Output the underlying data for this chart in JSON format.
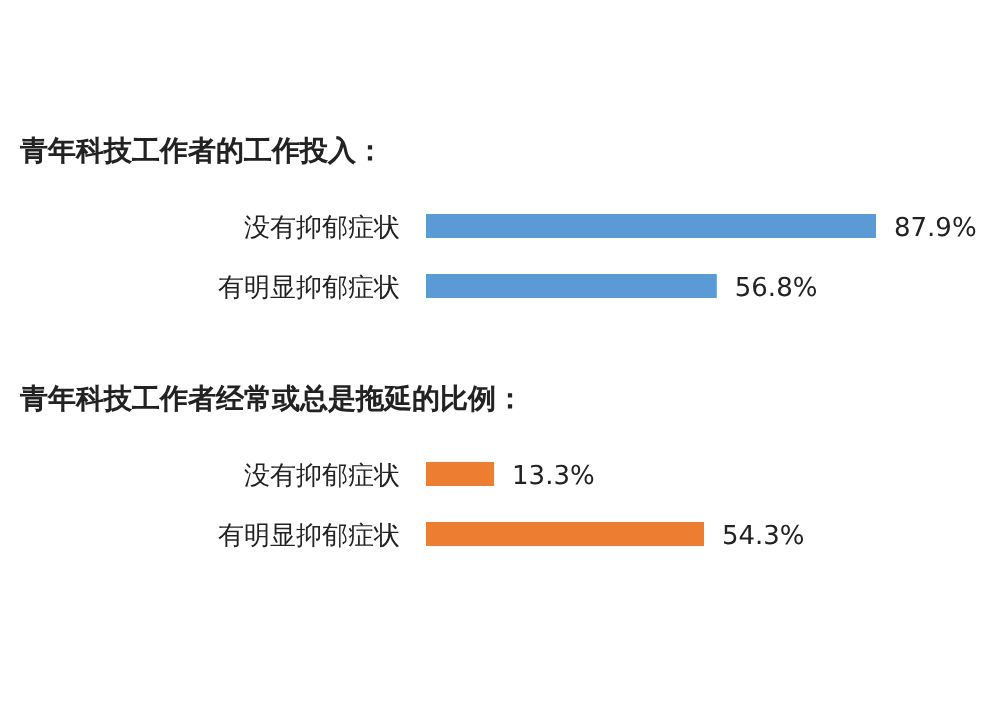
{
  "chart_data": [
    {
      "type": "bar",
      "orientation": "horizontal",
      "title": "青年科技工作者的工作投入：",
      "categories": [
        "没有抑郁症状",
        "有明显抑郁症状"
      ],
      "values": [
        87.9,
        56.8
      ],
      "color": "#5b9bd5",
      "data_labels": true,
      "value_labels": [
        "87.9%",
        "56.8%"
      ]
    },
    {
      "type": "bar",
      "orientation": "horizontal",
      "title": "青年科技工作者经常或总是拖延的比例：",
      "categories": [
        "没有抑郁症状",
        "有明显抑郁症状"
      ],
      "values": [
        13.3,
        54.3
      ],
      "color": "#ed7d31",
      "data_labels": true,
      "value_labels": [
        "13.3%",
        "54.3%"
      ]
    }
  ]
}
